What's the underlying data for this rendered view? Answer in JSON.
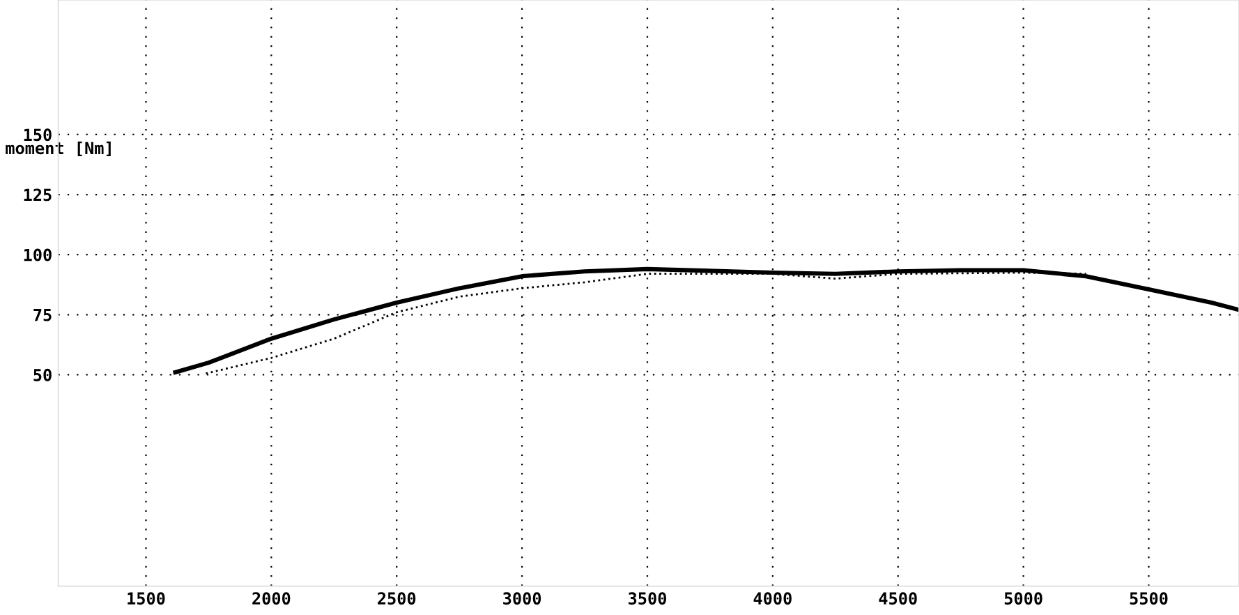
{
  "chart_data": {
    "type": "line",
    "ylabel": "moment [Nm]",
    "xlim": [
      1150,
      5860
    ],
    "ylim": [
      -38,
      206
    ],
    "xticks": [
      1500,
      2000,
      2500,
      3000,
      3500,
      4000,
      4500,
      5000,
      5500
    ],
    "yticks": [
      50,
      75,
      100,
      125,
      150
    ],
    "grid": true,
    "marker": "none",
    "series": [
      {
        "color": "#000000",
        "line_style": "solid",
        "x": [
          1617,
          1750,
          2000,
          2250,
          2500,
          2750,
          3000,
          3250,
          3500,
          4000,
          4250,
          4500,
          4750,
          5000,
          5250,
          5500,
          5750,
          5860
        ],
        "values": [
          51,
          55,
          65,
          73,
          80,
          86,
          91,
          93,
          94,
          92.5,
          92,
          93,
          93.5,
          93.5,
          91,
          85.5,
          80,
          77
        ]
      },
      {
        "color": "#000000",
        "line_style": "dotted",
        "x": [
          1739,
          2000,
          2250,
          2500,
          2750,
          3000,
          3250,
          3500,
          4000,
          4250,
          4500,
          5000,
          5250
        ],
        "values": [
          50.5,
          57,
          65,
          76,
          82.5,
          86,
          88.5,
          92,
          92,
          90,
          92,
          92.5,
          92
        ]
      }
    ]
  }
}
